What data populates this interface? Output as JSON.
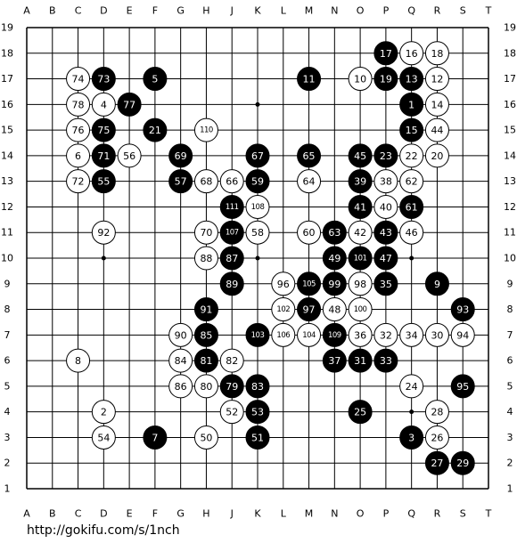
{
  "column_labels": [
    "A",
    "B",
    "C",
    "D",
    "E",
    "F",
    "G",
    "H",
    "J",
    "K",
    "L",
    "M",
    "N",
    "O",
    "P",
    "Q",
    "R",
    "S",
    "T"
  ],
  "row_labels": [
    19,
    18,
    17,
    16,
    15,
    14,
    13,
    12,
    11,
    10,
    9,
    8,
    7,
    6,
    5,
    4,
    3,
    2,
    1
  ],
  "stones": [
    {
      "point": "P18",
      "color": "black",
      "number": 17
    },
    {
      "point": "Q18",
      "color": "white",
      "number": 16
    },
    {
      "point": "R18",
      "color": "white",
      "number": 18
    },
    {
      "point": "C17",
      "color": "white",
      "number": 74
    },
    {
      "point": "D17",
      "color": "black",
      "number": 73
    },
    {
      "point": "F17",
      "color": "black",
      "number": 5
    },
    {
      "point": "M17",
      "color": "black",
      "number": 11
    },
    {
      "point": "O17",
      "color": "white",
      "number": 10
    },
    {
      "point": "P17",
      "color": "black",
      "number": 19
    },
    {
      "point": "Q17",
      "color": "black",
      "number": 13
    },
    {
      "point": "R17",
      "color": "white",
      "number": 12
    },
    {
      "point": "C16",
      "color": "white",
      "number": 78
    },
    {
      "point": "D16",
      "color": "white",
      "number": 4
    },
    {
      "point": "E16",
      "color": "black",
      "number": 77
    },
    {
      "point": "Q16",
      "color": "black",
      "number": 1
    },
    {
      "point": "R16",
      "color": "white",
      "number": 14
    },
    {
      "point": "C15",
      "color": "white",
      "number": 76
    },
    {
      "point": "D15",
      "color": "black",
      "number": 75
    },
    {
      "point": "F15",
      "color": "black",
      "number": 21
    },
    {
      "point": "H15",
      "color": "white",
      "number": 110
    },
    {
      "point": "Q15",
      "color": "black",
      "number": 15
    },
    {
      "point": "R15",
      "color": "white",
      "number": 44
    },
    {
      "point": "C14",
      "color": "white",
      "number": 6
    },
    {
      "point": "D14",
      "color": "black",
      "number": 71
    },
    {
      "point": "E14",
      "color": "white",
      "number": 56
    },
    {
      "point": "G14",
      "color": "black",
      "number": 69
    },
    {
      "point": "K14",
      "color": "black",
      "number": 67
    },
    {
      "point": "M14",
      "color": "black",
      "number": 65
    },
    {
      "point": "O14",
      "color": "black",
      "number": 45
    },
    {
      "point": "P14",
      "color": "black",
      "number": 23
    },
    {
      "point": "Q14",
      "color": "white",
      "number": 22
    },
    {
      "point": "R14",
      "color": "white",
      "number": 20
    },
    {
      "point": "C13",
      "color": "white",
      "number": 72
    },
    {
      "point": "D13",
      "color": "black",
      "number": 55
    },
    {
      "point": "G13",
      "color": "black",
      "number": 57
    },
    {
      "point": "H13",
      "color": "white",
      "number": 68
    },
    {
      "point": "J13",
      "color": "white",
      "number": 66
    },
    {
      "point": "K13",
      "color": "black",
      "number": 59
    },
    {
      "point": "M13",
      "color": "white",
      "number": 64
    },
    {
      "point": "O13",
      "color": "black",
      "number": 39
    },
    {
      "point": "P13",
      "color": "white",
      "number": 38
    },
    {
      "point": "Q13",
      "color": "white",
      "number": 62
    },
    {
      "point": "J12",
      "color": "black",
      "number": 111
    },
    {
      "point": "K12",
      "color": "white",
      "number": 108
    },
    {
      "point": "O12",
      "color": "black",
      "number": 41
    },
    {
      "point": "P12",
      "color": "white",
      "number": 40
    },
    {
      "point": "Q12",
      "color": "black",
      "number": 61
    },
    {
      "point": "D11",
      "color": "white",
      "number": 92
    },
    {
      "point": "H11",
      "color": "white",
      "number": 70
    },
    {
      "point": "J11",
      "color": "black",
      "number": 107
    },
    {
      "point": "K11",
      "color": "white",
      "number": 58
    },
    {
      "point": "M11",
      "color": "white",
      "number": 60
    },
    {
      "point": "N11",
      "color": "black",
      "number": 63
    },
    {
      "point": "O11",
      "color": "white",
      "number": 42
    },
    {
      "point": "P11",
      "color": "black",
      "number": 43
    },
    {
      "point": "Q11",
      "color": "white",
      "number": 46
    },
    {
      "point": "H10",
      "color": "white",
      "number": 88
    },
    {
      "point": "J10",
      "color": "black",
      "number": 87
    },
    {
      "point": "N10",
      "color": "black",
      "number": 49
    },
    {
      "point": "O10",
      "color": "black",
      "number": 101
    },
    {
      "point": "P10",
      "color": "black",
      "number": 47
    },
    {
      "point": "J9",
      "color": "black",
      "number": 89
    },
    {
      "point": "L9",
      "color": "white",
      "number": 96
    },
    {
      "point": "M9",
      "color": "black",
      "number": 105
    },
    {
      "point": "N9",
      "color": "black",
      "number": 99
    },
    {
      "point": "O9",
      "color": "white",
      "number": 98
    },
    {
      "point": "P9",
      "color": "black",
      "number": 35
    },
    {
      "point": "R9",
      "color": "black",
      "number": 9
    },
    {
      "point": "H8",
      "color": "black",
      "number": 91
    },
    {
      "point": "L8",
      "color": "white",
      "number": 102
    },
    {
      "point": "M8",
      "color": "black",
      "number": 97
    },
    {
      "point": "N8",
      "color": "white",
      "number": 48
    },
    {
      "point": "O8",
      "color": "white",
      "number": 100
    },
    {
      "point": "S8",
      "color": "black",
      "number": 93
    },
    {
      "point": "G7",
      "color": "white",
      "number": 90
    },
    {
      "point": "H7",
      "color": "black",
      "number": 85
    },
    {
      "point": "K7",
      "color": "black",
      "number": 103
    },
    {
      "point": "L7",
      "color": "white",
      "number": 106
    },
    {
      "point": "M7",
      "color": "white",
      "number": 104
    },
    {
      "point": "N7",
      "color": "black",
      "number": 109
    },
    {
      "point": "O7",
      "color": "white",
      "number": 36
    },
    {
      "point": "P7",
      "color": "white",
      "number": 32
    },
    {
      "point": "Q7",
      "color": "white",
      "number": 34
    },
    {
      "point": "R7",
      "color": "white",
      "number": 30
    },
    {
      "point": "S7",
      "color": "white",
      "number": 94
    },
    {
      "point": "C6",
      "color": "white",
      "number": 8
    },
    {
      "point": "G6",
      "color": "white",
      "number": 84
    },
    {
      "point": "H6",
      "color": "black",
      "number": 81
    },
    {
      "point": "J6",
      "color": "white",
      "number": 82
    },
    {
      "point": "N6",
      "color": "black",
      "number": 37
    },
    {
      "point": "O6",
      "color": "black",
      "number": 31
    },
    {
      "point": "P6",
      "color": "black",
      "number": 33
    },
    {
      "point": "G5",
      "color": "white",
      "number": 86
    },
    {
      "point": "H5",
      "color": "white",
      "number": 80
    },
    {
      "point": "J5",
      "color": "black",
      "number": 79
    },
    {
      "point": "K5",
      "color": "black",
      "number": 83
    },
    {
      "point": "Q5",
      "color": "white",
      "number": 24
    },
    {
      "point": "S5",
      "color": "black",
      "number": 95
    },
    {
      "point": "D4",
      "color": "white",
      "number": 2
    },
    {
      "point": "J4",
      "color": "white",
      "number": 52
    },
    {
      "point": "K4",
      "color": "black",
      "number": 53
    },
    {
      "point": "O4",
      "color": "black",
      "number": 25
    },
    {
      "point": "R4",
      "color": "white",
      "number": 28
    },
    {
      "point": "D3",
      "color": "white",
      "number": 54
    },
    {
      "point": "F3",
      "color": "black",
      "number": 7
    },
    {
      "point": "H3",
      "color": "white",
      "number": 50
    },
    {
      "point": "K3",
      "color": "black",
      "number": 51
    },
    {
      "point": "Q3",
      "color": "black",
      "number": 3
    },
    {
      "point": "R3",
      "color": "white",
      "number": 26
    },
    {
      "point": "R2",
      "color": "black",
      "number": 27
    },
    {
      "point": "S2",
      "color": "black",
      "number": 29
    }
  ],
  "url": "http://gokifu.com/s/1nch"
}
